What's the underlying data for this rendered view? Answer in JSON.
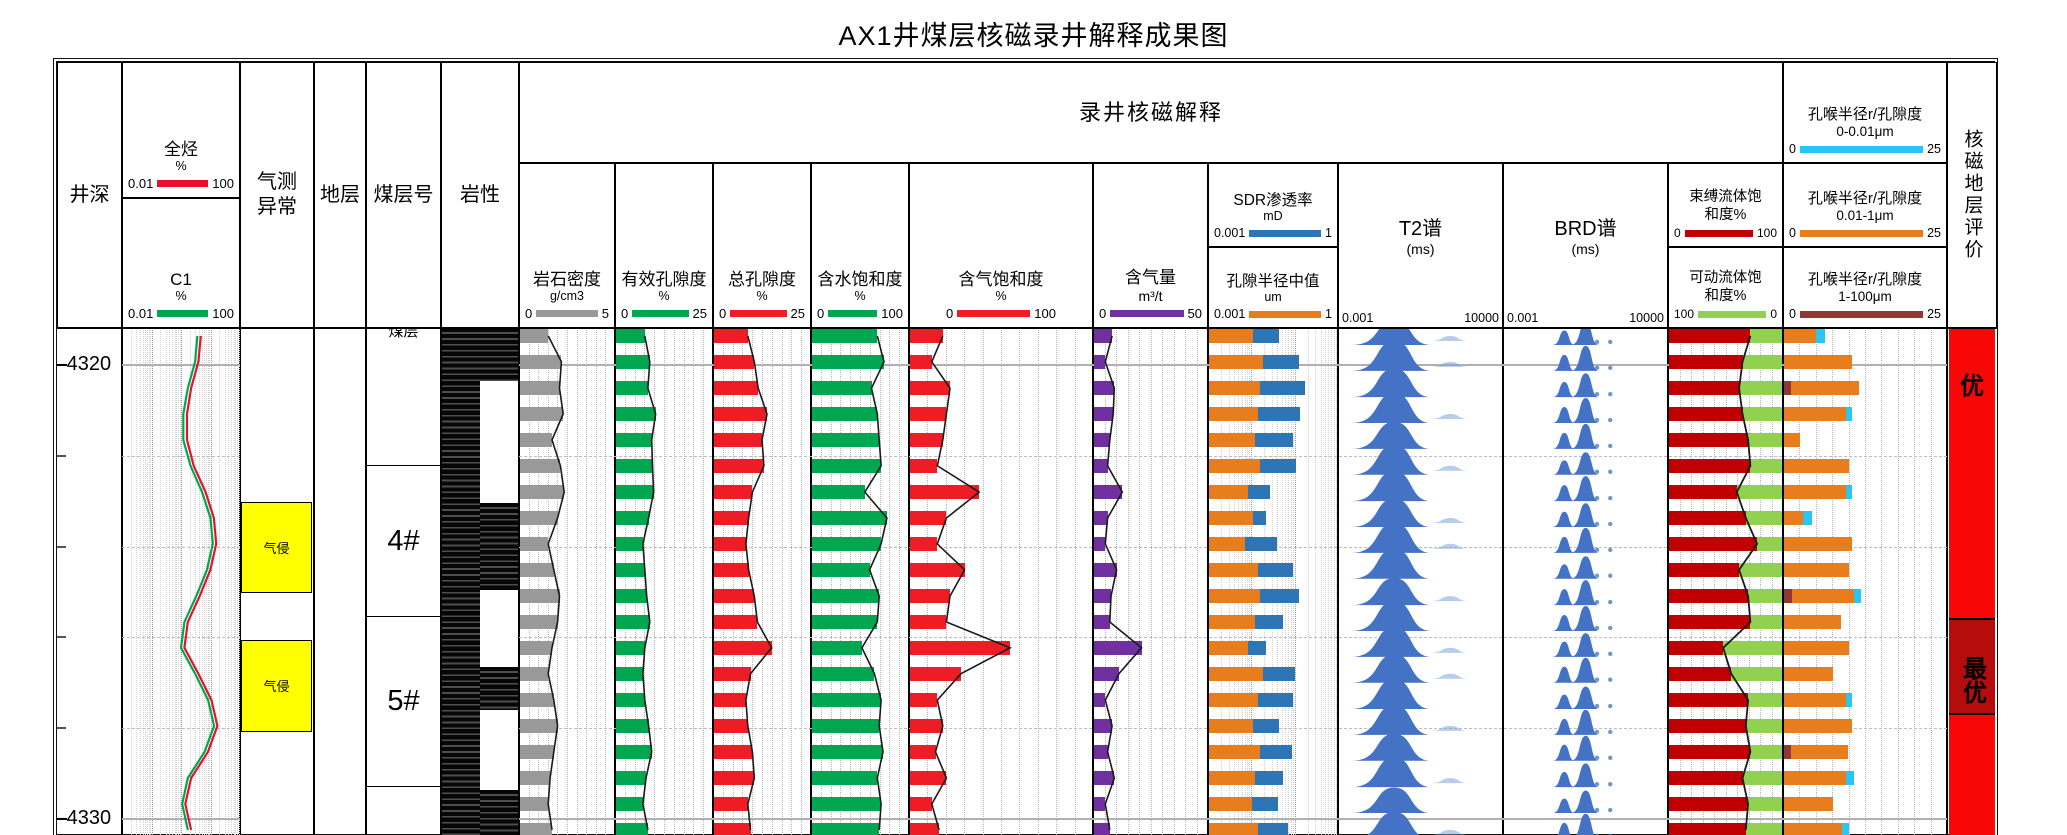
{
  "title": "AX1井煤层核磁录井解释成果图",
  "header": {
    "depth": "井深",
    "anomaly_line1": "气测",
    "anomaly_line2": "异常",
    "formation": "地层",
    "seam": "煤层号",
    "lithology": "岩性",
    "group": "录井核磁解释",
    "evaluation": "核磁地层评价"
  },
  "gas_header": {
    "total": {
      "name": "全烃",
      "unit": "%",
      "min": "0.01",
      "max": "100",
      "color": "#e8112d"
    },
    "c1": {
      "name": "C1",
      "unit": "%",
      "min": "0.01",
      "max": "100",
      "color": "#00a650"
    }
  },
  "tracks": {
    "density": {
      "title": "岩石密度",
      "unit": "g/cm3",
      "min": "0",
      "max": "5",
      "color": "#999999"
    },
    "eff_por": {
      "title": "有效孔隙度",
      "unit": "%",
      "min": "0",
      "max": "25",
      "color": "#00a650"
    },
    "tot_por": {
      "title": "总孔隙度",
      "unit": "%",
      "min": "0",
      "max": "25",
      "color": "#ee1c25"
    },
    "water_sat": {
      "title": "含水饱和度",
      "unit": "%",
      "min": "0",
      "max": "100",
      "color": "#00a650"
    },
    "gas_sat": {
      "title": "含气饱和度",
      "unit": "%",
      "min": "0",
      "max": "100",
      "color": "#ee1c25"
    },
    "gas_content": {
      "title": "含气量",
      "unit": "m³/t",
      "min": "0",
      "max": "50",
      "color": "#7030a0"
    },
    "sdr": {
      "title": "SDR渗透率",
      "unit": "mD",
      "min": "0.001",
      "max": "1",
      "color": "#2e75b6"
    },
    "pore_radius": {
      "title": "孔隙半径中值",
      "unit": "um",
      "min": "0.001",
      "max": "1",
      "color": "#e87d1e"
    },
    "t2": {
      "title": "T2谱",
      "unit": "(ms)",
      "min": "0.001",
      "max": "10000",
      "color": "#4472c4"
    },
    "brd": {
      "title": "BRD谱",
      "unit": "(ms)",
      "min": "0.001",
      "max": "10000",
      "color": "#4472c4"
    },
    "bound": {
      "title": "束缚流体饱",
      "title2": "和度%",
      "min": "0",
      "max": "100",
      "color": "#c00000"
    },
    "movable": {
      "title": "可动流体饱",
      "title2": "和度%",
      "min": "100",
      "max": "0",
      "color": "#92d050"
    },
    "throat1": {
      "title": "孔喉半径r/孔隙度",
      "sub": "0-0.01μm",
      "min": "0",
      "max": "25",
      "color": "#29c5f6"
    },
    "throat2": {
      "title": "孔喉半径r/孔隙度",
      "sub": "0.01-1μm",
      "min": "0",
      "max": "25",
      "color": "#e87d1e"
    },
    "throat3": {
      "title": "孔喉半径r/孔隙度",
      "sub": "1-100μm",
      "min": "0",
      "max": "25",
      "color": "#943634"
    }
  },
  "depth_axis": {
    "unit": "m",
    "major_labels": [
      {
        "value": 4320,
        "label": "-4320"
      },
      {
        "value": 4330,
        "label": "-4330"
      }
    ],
    "minor_tick_values": [
      4322,
      4324,
      4326,
      4328
    ]
  },
  "annotations": {
    "gas_anomaly_boxes": [
      {
        "label": "气侵",
        "depth_from": 4323.02,
        "depth_to": 4325.02,
        "color": "#ffff00"
      },
      {
        "label": "气侵",
        "depth_from": 4326.06,
        "depth_to": 4328.08,
        "color": "#ffff00"
      }
    ],
    "seam_sections": [
      {
        "label": "煤层",
        "clipped_top": true,
        "depth_from": 4319.19,
        "depth_to": 4322.23
      },
      {
        "label": "4#",
        "depth_from": 4322.23,
        "depth_to": 4325.55
      },
      {
        "label": "5#",
        "depth_from": 4325.55,
        "depth_to": 4329.29
      },
      {
        "label": "",
        "depth_from": 4329.29,
        "depth_to": 4330.4
      }
    ],
    "evaluation_sections": [
      {
        "label": "优",
        "color": "#f90606",
        "depth_from": 4319.19,
        "depth_to": 4325.57,
        "label_depth": 4320.35
      },
      {
        "label": "最优",
        "color": "#b50c0c",
        "depth_from": 4325.57,
        "depth_to": 4327.66,
        "label_depth": 4326.6
      },
      {
        "label": "",
        "color": "#f90606",
        "depth_from": 4327.66,
        "depth_to": 4330.4,
        "label_depth": null
      }
    ],
    "coal_full_width_segments": [
      [
        4319.19,
        4320.35
      ],
      [
        4323.04,
        4324.96
      ],
      [
        4326.65,
        4327.6
      ],
      [
        4329.36,
        4330.4
      ]
    ]
  },
  "chart_data": {
    "type": "well-log",
    "depth_unit": "m",
    "depths": [
      4319.36,
      4319.93,
      4320.51,
      4321.08,
      4321.65,
      4322.22,
      4322.8,
      4323.37,
      4323.94,
      4324.51,
      4325.09,
      4325.66,
      4326.23,
      4326.8,
      4327.38,
      4327.95,
      4328.52,
      4329.1,
      4329.67,
      4330.24
    ],
    "series": {
      "density_g_cm3": [
        1.5,
        2.2,
        2.1,
        2.3,
        1.7,
        2.15,
        2.35,
        2.0,
        1.5,
        1.8,
        2.1,
        2.0,
        1.7,
        1.5,
        1.8,
        2.0,
        1.8,
        1.6,
        1.5,
        1.7
      ],
      "eff_porosity_pct": [
        7.5,
        8.8,
        8.3,
        10.3,
        9.3,
        9.5,
        9.8,
        8.5,
        7.0,
        7.5,
        8.0,
        8.8,
        7.5,
        7.0,
        7.5,
        8.5,
        9.3,
        7.8,
        7.0,
        8.3
      ],
      "tot_porosity_pct": [
        8.8,
        10.5,
        11.5,
        13.8,
        12.5,
        13.0,
        10.0,
        9.0,
        8.3,
        9.0,
        10.5,
        11.3,
        15.0,
        9.5,
        8.3,
        8.8,
        10.0,
        10.5,
        8.8,
        9.5
      ],
      "water_sat_pct": [
        68,
        75,
        62,
        68,
        70,
        72,
        55,
        78,
        72,
        60,
        70,
        68,
        52,
        65,
        72,
        70,
        74,
        68,
        72,
        70
      ],
      "gas_sat_pct": [
        18,
        12,
        22,
        20,
        18,
        15,
        38,
        20,
        15,
        30,
        22,
        20,
        55,
        28,
        15,
        18,
        14,
        20,
        12,
        16
      ],
      "gas_content_m3_t": [
        8,
        5,
        9,
        8.5,
        7,
        6,
        12.5,
        6,
        5,
        10,
        7.5,
        7,
        21,
        11,
        5,
        8,
        6,
        9,
        5,
        7
      ],
      "pore_radius_um": [
        0.011,
        0.018,
        0.016,
        0.014,
        0.012,
        0.016,
        0.008,
        0.011,
        0.007,
        0.014,
        0.016,
        0.012,
        0.008,
        0.018,
        0.014,
        0.011,
        0.016,
        0.012,
        0.01,
        0.014
      ],
      "sdr_perm_mD": [
        0.045,
        0.126,
        0.178,
        0.135,
        0.095,
        0.11,
        0.027,
        0.022,
        0.039,
        0.095,
        0.126,
        0.055,
        0.022,
        0.102,
        0.095,
        0.045,
        0.089,
        0.055,
        0.042,
        0.072
      ],
      "bound_fluid_pct": [
        72,
        65,
        62,
        65,
        70,
        72,
        60,
        68,
        78,
        62,
        70,
        72,
        48,
        55,
        70,
        68,
        72,
        65,
        70,
        68
      ],
      "movable_fluid_pct": [
        28,
        35,
        38,
        35,
        30,
        28,
        40,
        32,
        22,
        38,
        30,
        28,
        52,
        45,
        30,
        32,
        28,
        35,
        30,
        32
      ],
      "throat_0_001um": [
        1.3,
        0,
        0,
        1,
        0,
        0,
        1,
        1.3,
        0,
        0,
        1,
        0,
        0,
        0,
        1,
        0,
        0,
        1.3,
        0,
        1
      ],
      "throat_001_1um": [
        5,
        10.5,
        10.5,
        9.5,
        2.5,
        10,
        9.5,
        3,
        10.5,
        10,
        9.5,
        8.8,
        10,
        7.5,
        9.5,
        10.5,
        8.8,
        9.5,
        7.5,
        9
      ],
      "throat_1_100um": [
        0,
        0,
        1,
        0,
        0,
        0,
        0,
        0,
        0,
        0,
        1.3,
        0,
        0,
        0,
        0,
        0,
        1,
        0,
        0,
        0
      ],
      "total_hc_pct": [
        4.7,
        3.9,
        2.2,
        1.6,
        1.6,
        2.7,
        6.8,
        13,
        15.6,
        9.9,
        4.3,
        1.7,
        1.3,
        3.9,
        10.8,
        17.2,
        8.2,
        2.2,
        1.4,
        2.2
      ],
      "c1_pct": [
        3.6,
        3.0,
        1.7,
        1.2,
        1.2,
        2.1,
        5.2,
        10,
        12,
        7.6,
        3.3,
        1.3,
        1.0,
        3.0,
        8.3,
        13.2,
        6.3,
        1.7,
        1.1,
        1.7
      ]
    },
    "t2_spectrum_amplitude": [
      0.8,
      1,
      0.95,
      1,
      0.9,
      1,
      1,
      0.95,
      1,
      1,
      0.9,
      1,
      1,
      0.95,
      1,
      1,
      0.9,
      1,
      0.85,
      0.9
    ],
    "t2_spectrum_tail": [
      1,
      1,
      0,
      1,
      0,
      1,
      0,
      1,
      1,
      0,
      1,
      0,
      1,
      1,
      0,
      1,
      0,
      1,
      0,
      1
    ],
    "brd_spectrum_amplitude": [
      0.9,
      1,
      0.95,
      1,
      1,
      0.9,
      1,
      0.95,
      1,
      0.9,
      1,
      1,
      0.95,
      1,
      0.9,
      1,
      1,
      0.95,
      0.9,
      1
    ]
  }
}
